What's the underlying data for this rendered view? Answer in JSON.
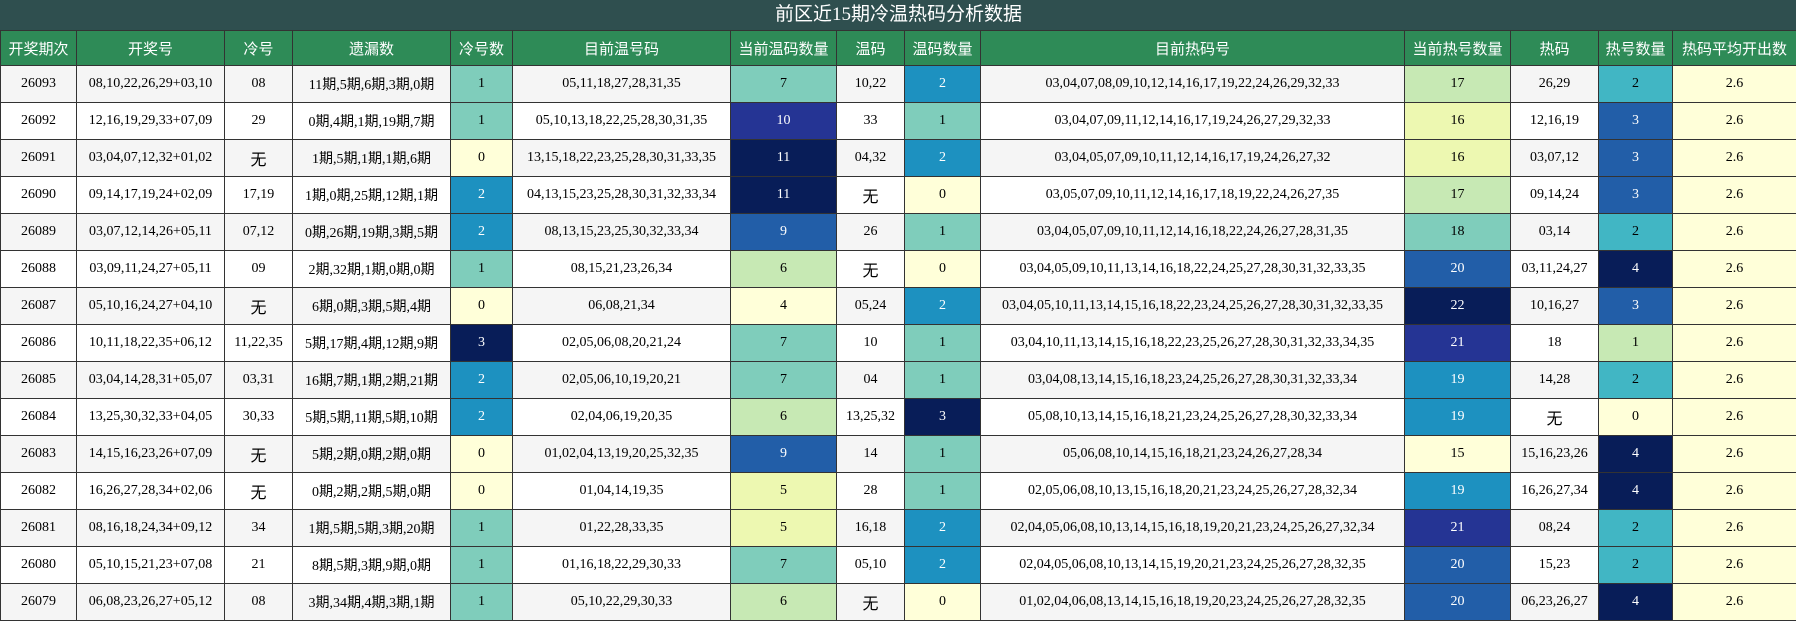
{
  "title": "前区近15期冷温热码分析数据",
  "headers": [
    "开奖期次",
    "开奖号",
    "冷号",
    "遗漏数",
    "冷号数",
    "目前温号码",
    "当前温码数量",
    "温码",
    "温码数量",
    "目前热码号",
    "当前热号数量",
    "热码",
    "热号数量",
    "热码平均开出数"
  ],
  "colors": {
    "header_bg": "#2e8b57",
    "title_bg": "#2f4f4f",
    "row_odd": "#f5f5f5",
    "row_even": "#ffffff",
    "scale_0": "#ffffd9",
    "scale_1": "#edf8b1",
    "scale_2": "#c7e9b4",
    "scale_3": "#7fcdbb",
    "scale_4": "#41b6c4",
    "scale_5": "#1d91c0",
    "scale_6": "#225ea8",
    "scale_7": "#253494",
    "scale_8": "#081d58"
  },
  "rows": [
    {
      "period": "26093",
      "draw": "08,10,22,26,29+03,10",
      "cold": "08",
      "miss": "11期,5期,6期,3期,0期",
      "cold_count": "1",
      "warm_list": "05,11,18,27,28,31,35",
      "warm_now": "7",
      "warm": "10,22",
      "warm_count": "2",
      "hot_list": "03,04,07,08,09,10,12,14,16,17,19,22,24,26,29,32,33",
      "hot_now": "17",
      "hot": "26,29",
      "hot_count": "2",
      "hot_avg": "2.6"
    },
    {
      "period": "26092",
      "draw": "12,16,19,29,33+07,09",
      "cold": "29",
      "miss": "0期,4期,1期,19期,7期",
      "cold_count": "1",
      "warm_list": "05,10,13,18,22,25,28,30,31,35",
      "warm_now": "10",
      "warm": "33",
      "warm_count": "1",
      "hot_list": "03,04,07,09,11,12,14,16,17,19,24,26,27,29,32,33",
      "hot_now": "16",
      "hot": "12,16,19",
      "hot_count": "3",
      "hot_avg": "2.6"
    },
    {
      "period": "26091",
      "draw": "03,04,07,12,32+01,02",
      "cold": "无",
      "miss": "1期,5期,1期,1期,6期",
      "cold_count": "0",
      "warm_list": "13,15,18,22,23,25,28,30,31,33,35",
      "warm_now": "11",
      "warm": "04,32",
      "warm_count": "2",
      "hot_list": "03,04,05,07,09,10,11,12,14,16,17,19,24,26,27,32",
      "hot_now": "16",
      "hot": "03,07,12",
      "hot_count": "3",
      "hot_avg": "2.6"
    },
    {
      "period": "26090",
      "draw": "09,14,17,19,24+02,09",
      "cold": "17,19",
      "miss": "1期,0期,25期,12期,1期",
      "cold_count": "2",
      "warm_list": "04,13,15,23,25,28,30,31,32,33,34",
      "warm_now": "11",
      "warm": "无",
      "warm_count": "0",
      "hot_list": "03,05,07,09,10,11,12,14,16,17,18,19,22,24,26,27,35",
      "hot_now": "17",
      "hot": "09,14,24",
      "hot_count": "3",
      "hot_avg": "2.6"
    },
    {
      "period": "26089",
      "draw": "03,07,12,14,26+05,11",
      "cold": "07,12",
      "miss": "0期,26期,19期,3期,5期",
      "cold_count": "2",
      "warm_list": "08,13,15,23,25,30,32,33,34",
      "warm_now": "9",
      "warm": "26",
      "warm_count": "1",
      "hot_list": "03,04,05,07,09,10,11,12,14,16,18,22,24,26,27,28,31,35",
      "hot_now": "18",
      "hot": "03,14",
      "hot_count": "2",
      "hot_avg": "2.6"
    },
    {
      "period": "26088",
      "draw": "03,09,11,24,27+05,11",
      "cold": "09",
      "miss": "2期,32期,1期,0期,0期",
      "cold_count": "1",
      "warm_list": "08,15,21,23,26,34",
      "warm_now": "6",
      "warm": "无",
      "warm_count": "0",
      "hot_list": "03,04,05,09,10,11,13,14,16,18,22,24,25,27,28,30,31,32,33,35",
      "hot_now": "20",
      "hot": "03,11,24,27",
      "hot_count": "4",
      "hot_avg": "2.6"
    },
    {
      "period": "26087",
      "draw": "05,10,16,24,27+04,10",
      "cold": "无",
      "miss": "6期,0期,3期,5期,4期",
      "cold_count": "0",
      "warm_list": "06,08,21,34",
      "warm_now": "4",
      "warm": "05,24",
      "warm_count": "2",
      "hot_list": "03,04,05,10,11,13,14,15,16,18,22,23,24,25,26,27,28,30,31,32,33,35",
      "hot_now": "22",
      "hot": "10,16,27",
      "hot_count": "3",
      "hot_avg": "2.6"
    },
    {
      "period": "26086",
      "draw": "10,11,18,22,35+06,12",
      "cold": "11,22,35",
      "miss": "5期,17期,4期,12期,9期",
      "cold_count": "3",
      "warm_list": "02,05,06,08,20,21,24",
      "warm_now": "7",
      "warm": "10",
      "warm_count": "1",
      "hot_list": "03,04,10,11,13,14,15,16,18,22,23,25,26,27,28,30,31,32,33,34,35",
      "hot_now": "21",
      "hot": "18",
      "hot_count": "1",
      "hot_avg": "2.6"
    },
    {
      "period": "26085",
      "draw": "03,04,14,28,31+05,07",
      "cold": "03,31",
      "miss": "16期,7期,1期,2期,21期",
      "cold_count": "2",
      "warm_list": "02,05,06,10,19,20,21",
      "warm_now": "7",
      "warm": "04",
      "warm_count": "1",
      "hot_list": "03,04,08,13,14,15,16,18,23,24,25,26,27,28,30,31,32,33,34",
      "hot_now": "19",
      "hot": "14,28",
      "hot_count": "2",
      "hot_avg": "2.6"
    },
    {
      "period": "26084",
      "draw": "13,25,30,32,33+04,05",
      "cold": "30,33",
      "miss": "5期,5期,11期,5期,10期",
      "cold_count": "2",
      "warm_list": "02,04,06,19,20,35",
      "warm_now": "6",
      "warm": "13,25,32",
      "warm_count": "3",
      "hot_list": "05,08,10,13,14,15,16,18,21,23,24,25,26,27,28,30,32,33,34",
      "hot_now": "19",
      "hot": "无",
      "hot_count": "0",
      "hot_avg": "2.6"
    },
    {
      "period": "26083",
      "draw": "14,15,16,23,26+07,09",
      "cold": "无",
      "miss": "5期,2期,0期,2期,0期",
      "cold_count": "0",
      "warm_list": "01,02,04,13,19,20,25,32,35",
      "warm_now": "9",
      "warm": "14",
      "warm_count": "1",
      "hot_list": "05,06,08,10,14,15,16,18,21,23,24,26,27,28,34",
      "hot_now": "15",
      "hot": "15,16,23,26",
      "hot_count": "4",
      "hot_avg": "2.6"
    },
    {
      "period": "26082",
      "draw": "16,26,27,28,34+02,06",
      "cold": "无",
      "miss": "0期,2期,2期,5期,0期",
      "cold_count": "0",
      "warm_list": "01,04,14,19,35",
      "warm_now": "5",
      "warm": "28",
      "warm_count": "1",
      "hot_list": "02,05,06,08,10,13,15,16,18,20,21,23,24,25,26,27,28,32,34",
      "hot_now": "19",
      "hot": "16,26,27,34",
      "hot_count": "4",
      "hot_avg": "2.6"
    },
    {
      "period": "26081",
      "draw": "08,16,18,24,34+09,12",
      "cold": "34",
      "miss": "1期,5期,5期,3期,20期",
      "cold_count": "1",
      "warm_list": "01,22,28,33,35",
      "warm_now": "5",
      "warm": "16,18",
      "warm_count": "2",
      "hot_list": "02,04,05,06,08,10,13,14,15,16,18,19,20,21,23,24,25,26,27,32,34",
      "hot_now": "21",
      "hot": "08,24",
      "hot_count": "2",
      "hot_avg": "2.6"
    },
    {
      "period": "26080",
      "draw": "05,10,15,21,23+07,08",
      "cold": "21",
      "miss": "8期,5期,3期,9期,0期",
      "cold_count": "1",
      "warm_list": "01,16,18,22,29,30,33",
      "warm_now": "7",
      "warm": "05,10",
      "warm_count": "2",
      "hot_list": "02,04,05,06,08,10,13,14,15,19,20,21,23,24,25,26,27,28,32,35",
      "hot_now": "20",
      "hot": "15,23",
      "hot_count": "2",
      "hot_avg": "2.6"
    },
    {
      "period": "26079",
      "draw": "06,08,23,26,27+05,12",
      "cold": "08",
      "miss": "3期,34期,4期,3期,1期",
      "cold_count": "1",
      "warm_list": "05,10,22,29,30,33",
      "warm_now": "6",
      "warm": "无",
      "warm_count": "0",
      "hot_list": "01,02,04,06,08,13,14,15,16,18,19,20,23,24,25,26,27,28,32,35",
      "hot_now": "20",
      "hot": "06,23,26,27",
      "hot_count": "4",
      "hot_avg": "2.6"
    }
  ]
}
